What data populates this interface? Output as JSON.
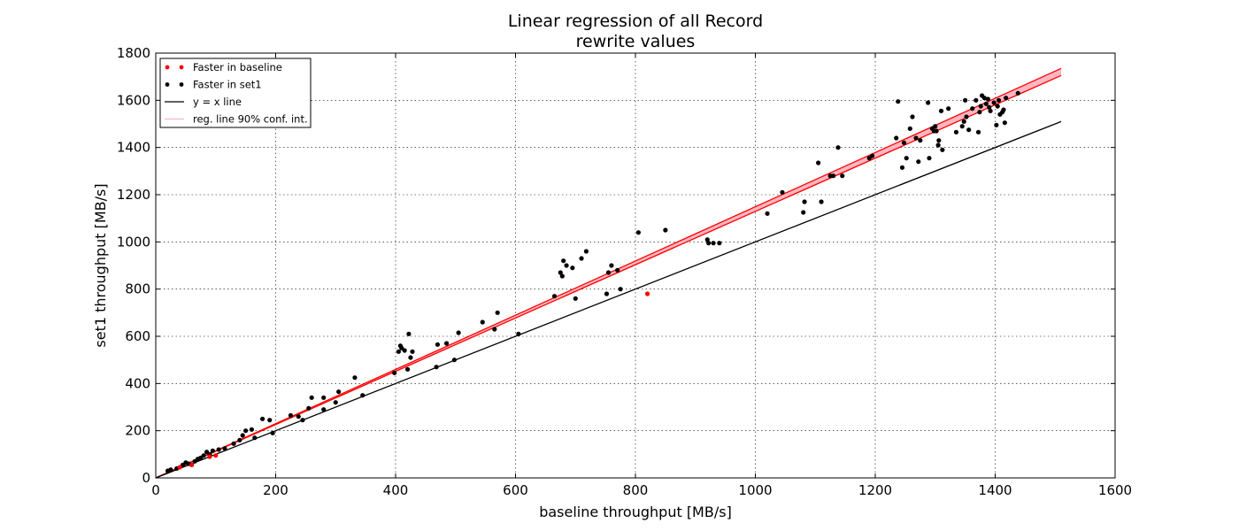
{
  "chart_data": {
    "type": "scatter",
    "title": [
      "Linear regression of all Record",
      "rewrite values"
    ],
    "xlabel": "baseline throughput [MB/s]",
    "ylabel": "set1 throughput [MB/s]",
    "xlim": [
      0,
      1600
    ],
    "ylim": [
      0,
      1800
    ],
    "xticks": [
      "0",
      "200",
      "400",
      "600",
      "800",
      "1000",
      "1200",
      "1400",
      "1600"
    ],
    "yticks": [
      "0",
      "200",
      "400",
      "600",
      "800",
      "1000",
      "1200",
      "1400",
      "1600",
      "1800"
    ],
    "grid": true,
    "legend_position": "top-left",
    "legend": [
      {
        "label": "Faster in baseline",
        "kind": "dots",
        "color": "#ff0000"
      },
      {
        "label": "Faster in set1",
        "kind": "dots",
        "color": "#000000"
      },
      {
        "label": "y = x line",
        "kind": "line",
        "color": "#000000"
      },
      {
        "label": "reg. line 90% conf. int.",
        "kind": "band",
        "color": "#ffb6c1"
      }
    ],
    "identity_line": {
      "x": [
        0,
        1510
      ],
      "y": [
        0,
        1510
      ],
      "color": "#000000"
    },
    "regression": {
      "x": [
        0,
        1510
      ],
      "lower": [
        0,
        1705
      ],
      "upper": [
        0,
        1735
      ],
      "line_color": "#ff0000",
      "band_color": "#ffb6c1"
    },
    "series": [
      {
        "name": "Faster in baseline",
        "color": "#ff0000",
        "points": [
          [
            40,
            45
          ],
          [
            60,
            55
          ],
          [
            90,
            90
          ],
          [
            100,
            95
          ],
          [
            820,
            780
          ]
        ]
      },
      {
        "name": "Faster in set1",
        "color": "#000000",
        "points": [
          [
            20,
            30
          ],
          [
            25,
            35
          ],
          [
            35,
            40
          ],
          [
            45,
            55
          ],
          [
            50,
            65
          ],
          [
            55,
            60
          ],
          [
            65,
            70
          ],
          [
            70,
            80
          ],
          [
            75,
            85
          ],
          [
            80,
            95
          ],
          [
            85,
            110
          ],
          [
            90,
            100
          ],
          [
            95,
            115
          ],
          [
            105,
            120
          ],
          [
            115,
            125
          ],
          [
            130,
            145
          ],
          [
            140,
            160
          ],
          [
            145,
            180
          ],
          [
            150,
            200
          ],
          [
            160,
            205
          ],
          [
            165,
            170
          ],
          [
            178,
            250
          ],
          [
            190,
            245
          ],
          [
            195,
            190
          ],
          [
            225,
            265
          ],
          [
            238,
            260
          ],
          [
            245,
            245
          ],
          [
            255,
            295
          ],
          [
            260,
            340
          ],
          [
            280,
            340
          ],
          [
            280,
            290
          ],
          [
            300,
            320
          ],
          [
            305,
            365
          ],
          [
            332,
            425
          ],
          [
            345,
            350
          ],
          [
            398,
            445
          ],
          [
            405,
            535
          ],
          [
            408,
            560
          ],
          [
            410,
            550
          ],
          [
            415,
            540
          ],
          [
            420,
            460
          ],
          [
            422,
            610
          ],
          [
            425,
            510
          ],
          [
            428,
            535
          ],
          [
            468,
            470
          ],
          [
            470,
            565
          ],
          [
            485,
            570
          ],
          [
            498,
            500
          ],
          [
            505,
            615
          ],
          [
            545,
            660
          ],
          [
            565,
            630
          ],
          [
            570,
            700
          ],
          [
            605,
            610
          ],
          [
            665,
            770
          ],
          [
            675,
            870
          ],
          [
            678,
            855
          ],
          [
            680,
            920
          ],
          [
            685,
            900
          ],
          [
            695,
            890
          ],
          [
            700,
            760
          ],
          [
            710,
            930
          ],
          [
            718,
            960
          ],
          [
            752,
            780
          ],
          [
            755,
            870
          ],
          [
            760,
            900
          ],
          [
            770,
            880
          ],
          [
            775,
            800
          ],
          [
            805,
            1040
          ],
          [
            850,
            1050
          ],
          [
            920,
            1010
          ],
          [
            922,
            995
          ],
          [
            930,
            995
          ],
          [
            940,
            995
          ],
          [
            1020,
            1120
          ],
          [
            1045,
            1210
          ],
          [
            1080,
            1125
          ],
          [
            1082,
            1170
          ],
          [
            1105,
            1335
          ],
          [
            1110,
            1170
          ],
          [
            1125,
            1280
          ],
          [
            1130,
            1280
          ],
          [
            1138,
            1400
          ],
          [
            1145,
            1280
          ],
          [
            1190,
            1355
          ],
          [
            1195,
            1365
          ],
          [
            1235,
            1440
          ],
          [
            1238,
            1595
          ],
          [
            1245,
            1315
          ],
          [
            1248,
            1420
          ],
          [
            1252,
            1355
          ],
          [
            1258,
            1480
          ],
          [
            1262,
            1530
          ],
          [
            1268,
            1440
          ],
          [
            1272,
            1340
          ],
          [
            1275,
            1430
          ],
          [
            1288,
            1590
          ],
          [
            1290,
            1355
          ],
          [
            1295,
            1480
          ],
          [
            1298,
            1470
          ],
          [
            1300,
            1490
          ],
          [
            1302,
            1470
          ],
          [
            1305,
            1410
          ],
          [
            1306,
            1430
          ],
          [
            1310,
            1555
          ],
          [
            1312,
            1390
          ],
          [
            1322,
            1565
          ],
          [
            1335,
            1465
          ],
          [
            1345,
            1490
          ],
          [
            1348,
            1510
          ],
          [
            1350,
            1600
          ],
          [
            1352,
            1530
          ],
          [
            1356,
            1475
          ],
          [
            1362,
            1565
          ],
          [
            1368,
            1600
          ],
          [
            1372,
            1465
          ],
          [
            1374,
            1550
          ],
          [
            1376,
            1575
          ],
          [
            1378,
            1620
          ],
          [
            1382,
            1610
          ],
          [
            1385,
            1585
          ],
          [
            1388,
            1605
          ],
          [
            1390,
            1570
          ],
          [
            1392,
            1555
          ],
          [
            1398,
            1590
          ],
          [
            1402,
            1495
          ],
          [
            1404,
            1575
          ],
          [
            1406,
            1600
          ],
          [
            1408,
            1540
          ],
          [
            1412,
            1550
          ],
          [
            1414,
            1560
          ],
          [
            1416,
            1505
          ],
          [
            1418,
            1610
          ],
          [
            1438,
            1630
          ]
        ]
      }
    ]
  }
}
